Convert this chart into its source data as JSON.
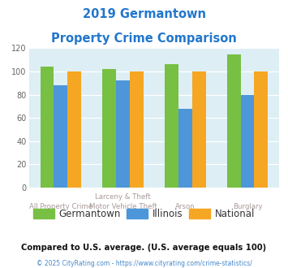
{
  "title_line1": "2019 Germantown",
  "title_line2": "Property Crime Comparison",
  "cat_labels_top": [
    "",
    "Larceny & Theft",
    "",
    ""
  ],
  "cat_labels_bottom": [
    "All Property Crime",
    "Motor Vehicle Theft",
    "Arson",
    "Burglary"
  ],
  "germantown": [
    104,
    102,
    106,
    115
  ],
  "illinois": [
    88,
    92,
    68,
    80
  ],
  "national": [
    100,
    100,
    100,
    100
  ],
  "colors": {
    "germantown": "#77c043",
    "illinois": "#4d96d9",
    "national": "#f5a623"
  },
  "ylim": [
    0,
    120
  ],
  "yticks": [
    0,
    20,
    40,
    60,
    80,
    100,
    120
  ],
  "background_color": "#ddeef4",
  "title_color": "#2277cc",
  "xlabel_color": "#aa9999",
  "legend_labels": [
    "Germantown",
    "Illinois",
    "National"
  ],
  "footnote1": "Compared to U.S. average. (U.S. average equals 100)",
  "footnote2": "© 2025 CityRating.com - https://www.cityrating.com/crime-statistics/"
}
